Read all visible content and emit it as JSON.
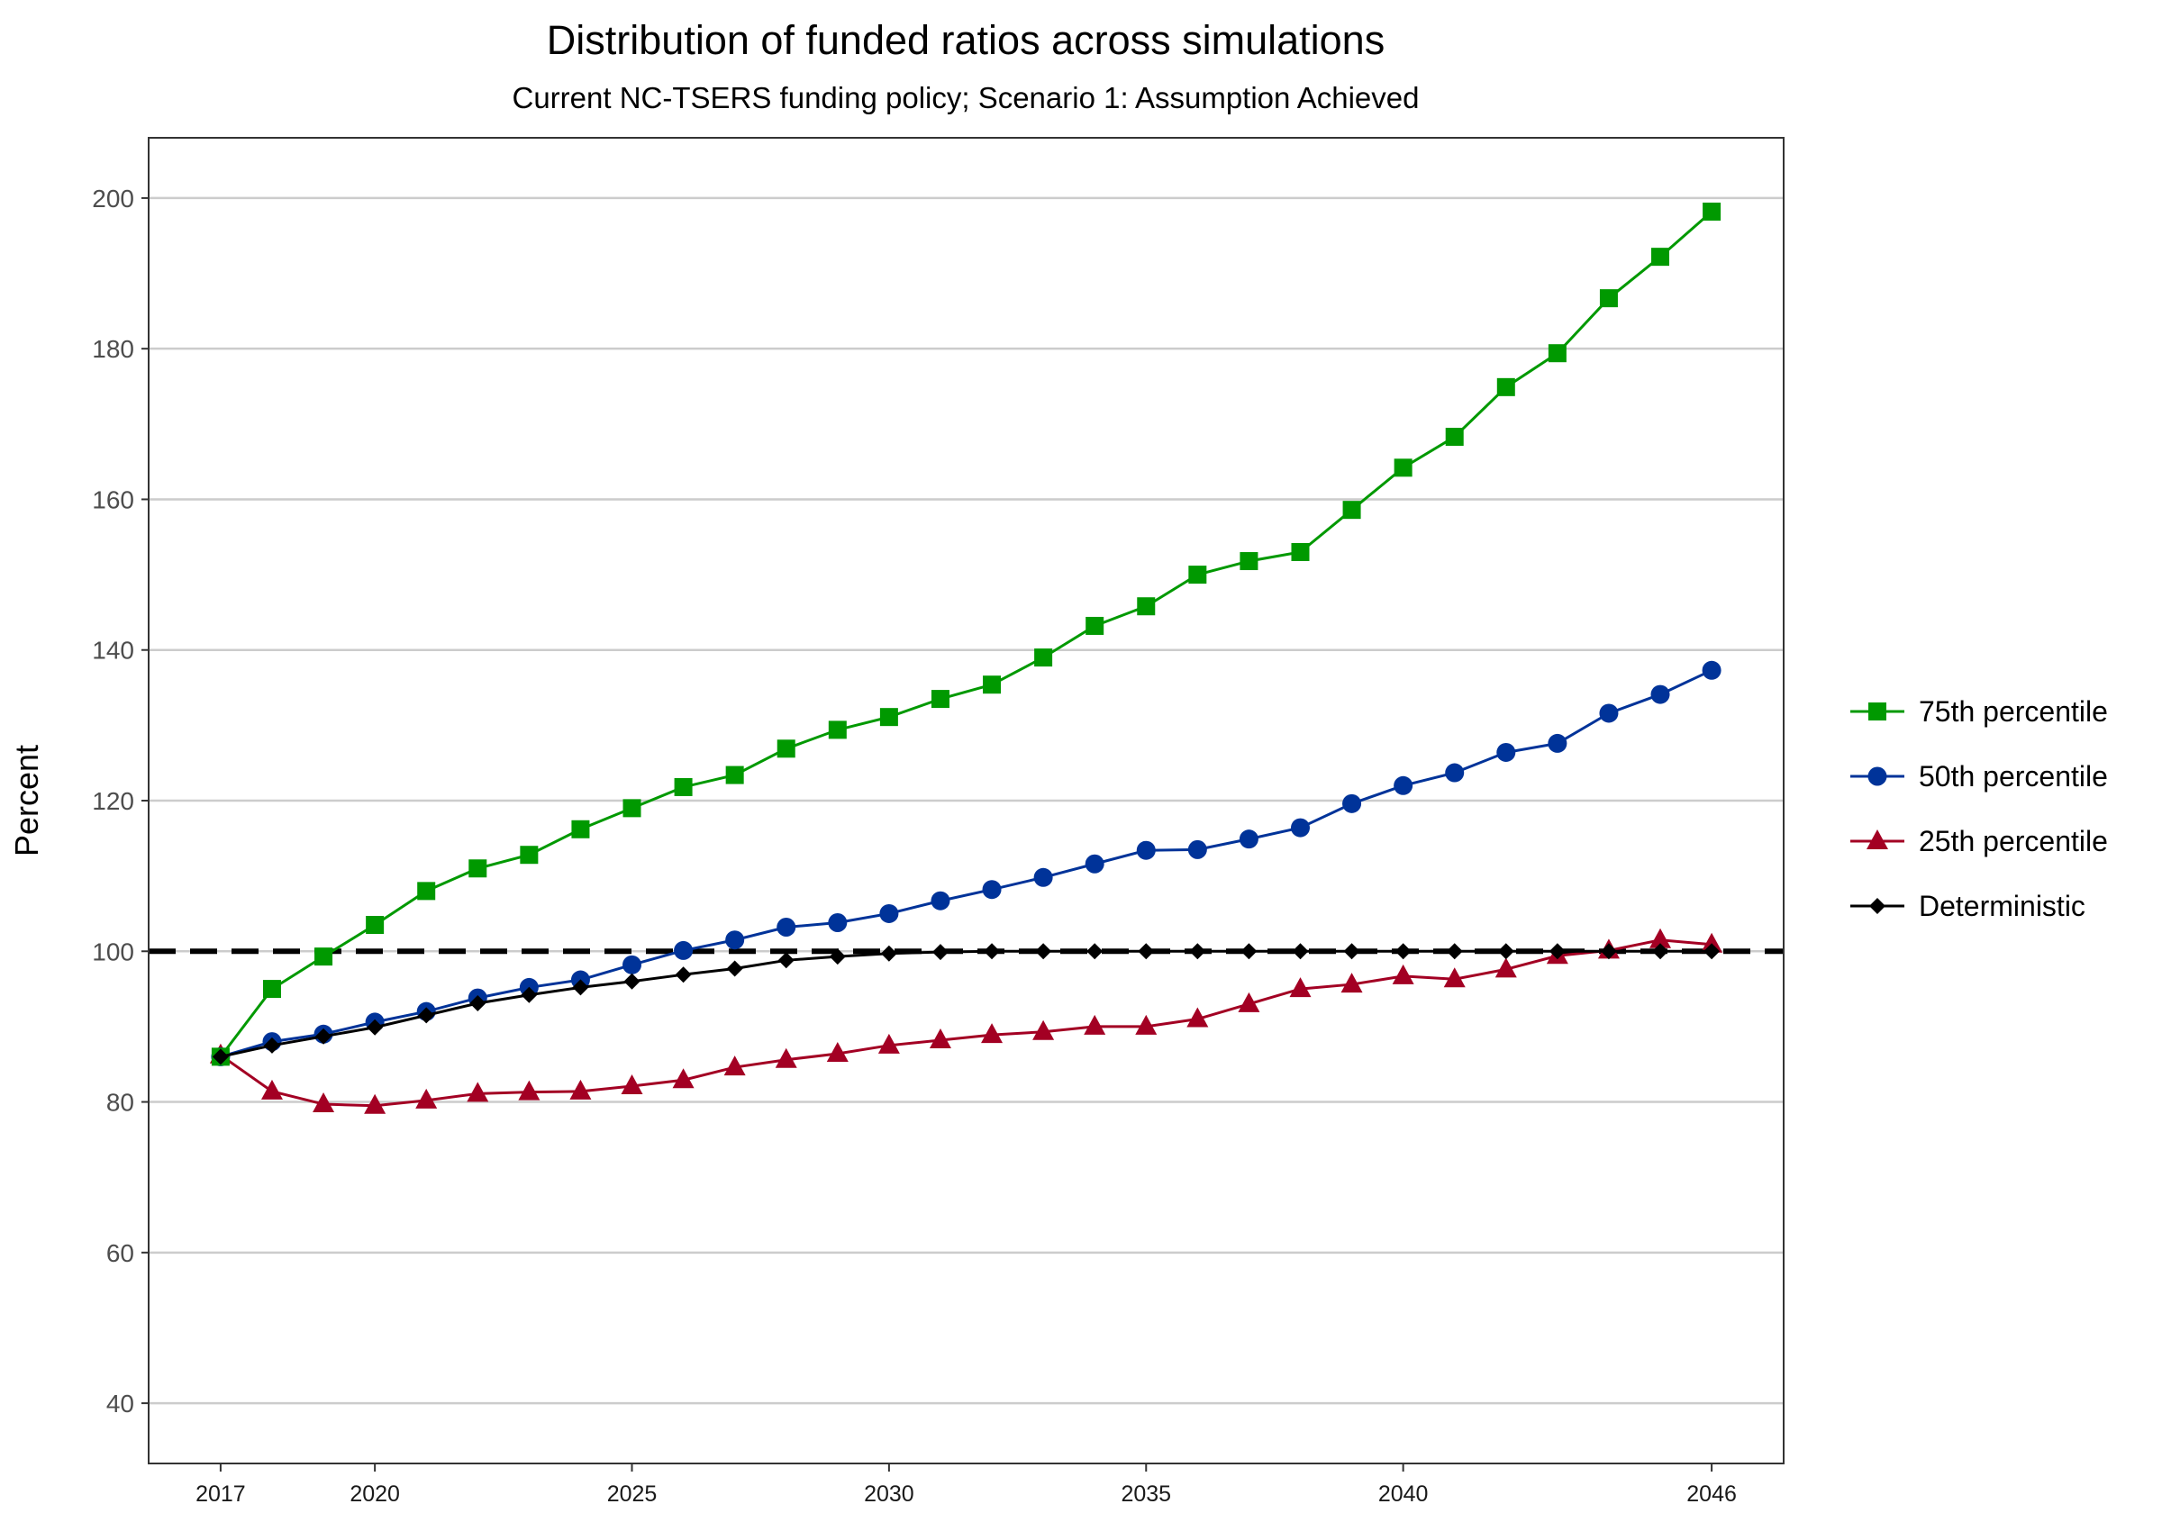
{
  "chart_data": {
    "type": "line",
    "title": "Distribution of funded ratios across simulations",
    "subtitle": "Current NC-TSERS funding policy; Scenario 1: Assumption Achieved",
    "xlabel": "",
    "ylabel": "Percent",
    "xlim": [
      2015.6,
      2047.4
    ],
    "ylim": [
      32,
      208
    ],
    "x_ticks": [
      2017,
      2020,
      2025,
      2030,
      2035,
      2040,
      2046
    ],
    "y_ticks": [
      40,
      60,
      80,
      100,
      120,
      140,
      160,
      180,
      200
    ],
    "grid": "horizontal major",
    "legend_position": "right",
    "reference_line": {
      "y": 100,
      "style": "dashed",
      "color": "#000000"
    },
    "x": [
      2017,
      2018,
      2019,
      2020,
      2021,
      2022,
      2023,
      2024,
      2025,
      2026,
      2027,
      2028,
      2029,
      2030,
      2031,
      2032,
      2033,
      2034,
      2035,
      2036,
      2037,
      2038,
      2039,
      2040,
      2041,
      2042,
      2043,
      2044,
      2045,
      2046
    ],
    "series": [
      {
        "name": "75th percentile",
        "color": "#009900",
        "marker": "square",
        "values": [
          86,
          95,
          99.3,
          103.5,
          108,
          111,
          112.8,
          116.2,
          119,
          121.8,
          123.4,
          126.9,
          129.4,
          131.1,
          133.5,
          135.4,
          139,
          143.2,
          145.8,
          150,
          151.8,
          153,
          158.6,
          164.2,
          168.3,
          174.9,
          179.4,
          186.7,
          192.2,
          198.2
        ]
      },
      {
        "name": "50th percentile",
        "color": "#003399",
        "marker": "circle",
        "values": [
          86,
          88,
          89,
          90.6,
          92,
          93.8,
          95.2,
          96.2,
          98.2,
          100.1,
          101.5,
          103.2,
          103.8,
          105,
          106.7,
          108.2,
          109.8,
          111.6,
          113.4,
          113.5,
          114.9,
          116.4,
          119.6,
          122,
          123.7,
          126.4,
          127.6,
          131.6,
          134.1,
          137.3
        ]
      },
      {
        "name": "25th percentile",
        "color": "#a30023",
        "marker": "triangle",
        "values": [
          86.2,
          81.4,
          79.7,
          79.5,
          80.2,
          81.1,
          81.3,
          81.4,
          82.1,
          82.9,
          84.6,
          85.6,
          86.4,
          87.5,
          88.2,
          88.9,
          89.3,
          90,
          90,
          91,
          93,
          95,
          95.6,
          96.7,
          96.3,
          97.6,
          99.4,
          100.1,
          101.5,
          100.9
        ]
      },
      {
        "name": "Deterministic",
        "color": "#000000",
        "marker": "diamond",
        "values": [
          86,
          87.5,
          88.7,
          89.9,
          91.5,
          93.1,
          94.2,
          95.2,
          96,
          96.9,
          97.7,
          98.8,
          99.3,
          99.7,
          99.9,
          100,
          100,
          100,
          100,
          100,
          100,
          100,
          100,
          100,
          100,
          100,
          100,
          100,
          100,
          100
        ]
      }
    ]
  }
}
